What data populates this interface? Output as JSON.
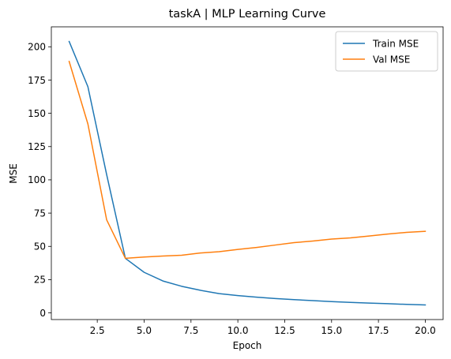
{
  "chart_data": {
    "type": "line",
    "title": "taskA | MLP Learning Curve",
    "xlabel": "Epoch",
    "ylabel": "MSE",
    "xlim": [
      0.05,
      20.95
    ],
    "ylim": [
      -5,
      215
    ],
    "xticks": [
      2.5,
      5.0,
      7.5,
      10.0,
      12.5,
      15.0,
      17.5,
      20.0
    ],
    "xtick_labels": [
      "2.5",
      "5.0",
      "7.5",
      "10.0",
      "12.5",
      "15.0",
      "17.5",
      "20.0"
    ],
    "yticks": [
      0,
      25,
      50,
      75,
      100,
      125,
      150,
      175,
      200
    ],
    "ytick_labels": [
      "0",
      "25",
      "50",
      "75",
      "100",
      "125",
      "150",
      "175",
      "200"
    ],
    "grid": false,
    "legend_position": "top-right",
    "x": [
      1,
      2,
      3,
      4,
      5,
      6,
      7,
      8,
      9,
      10,
      11,
      12,
      13,
      14,
      15,
      16,
      17,
      18,
      19,
      20
    ],
    "series": [
      {
        "name": "Train MSE",
        "color": "#1f77b4",
        "values": [
          204,
          170,
          104,
          41,
          30.5,
          24,
          20,
          17,
          14.5,
          13,
          11.8,
          10.8,
          10,
          9.2,
          8.5,
          7.9,
          7.4,
          6.9,
          6.4,
          6.0
        ]
      },
      {
        "name": "Val MSE",
        "color": "#ff7f0e",
        "values": [
          189,
          142,
          70,
          41,
          42,
          42.7,
          43.3,
          45,
          46,
          47.7,
          49.2,
          51,
          52.8,
          54,
          55.5,
          56.4,
          57.8,
          59.3,
          60.5,
          61.3
        ]
      }
    ]
  }
}
